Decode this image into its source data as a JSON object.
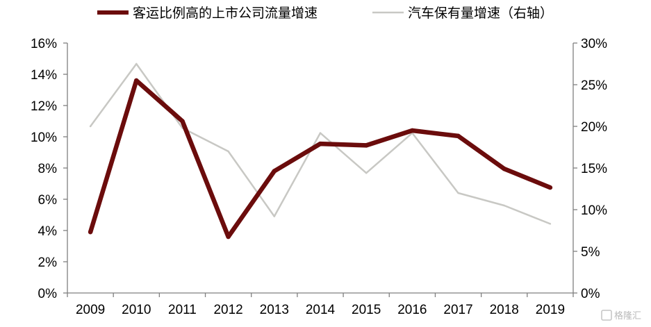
{
  "chart_data": {
    "type": "line",
    "categories": [
      "2009",
      "2010",
      "2011",
      "2012",
      "2013",
      "2014",
      "2015",
      "2016",
      "2017",
      "2018",
      "2019"
    ],
    "series": [
      {
        "name": "客运比例高的上市公司流量增速",
        "axis": "left",
        "color": "#6b0c0c",
        "values": [
          3.9,
          13.6,
          11.0,
          3.6,
          7.8,
          9.55,
          9.45,
          10.4,
          10.05,
          7.95,
          6.75
        ]
      },
      {
        "name": "汽车保有量增速（右轴）",
        "axis": "right",
        "color": "#c8c8c4",
        "values": [
          20.0,
          27.5,
          19.8,
          17.0,
          9.2,
          19.2,
          14.4,
          19.2,
          12.0,
          10.5,
          8.3
        ]
      }
    ],
    "y_left": {
      "min": 0,
      "max": 16,
      "step": 2,
      "ticks": [
        "0%",
        "2%",
        "4%",
        "6%",
        "8%",
        "10%",
        "12%",
        "14%",
        "16%"
      ]
    },
    "y_right": {
      "min": 0,
      "max": 30,
      "step": 5,
      "ticks": [
        "0%",
        "5%",
        "10%",
        "15%",
        "20%",
        "25%",
        "30%"
      ]
    },
    "grid": false,
    "legend_position": "top"
  },
  "watermark": "格隆汇"
}
